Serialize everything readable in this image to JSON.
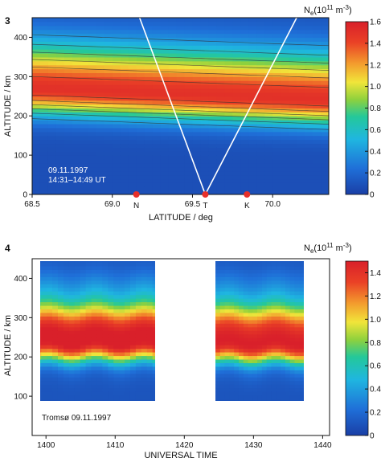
{
  "chart_data": [
    {
      "panel_number": "3",
      "type": "heatmap",
      "title": "",
      "xlabel": "LATITUDE / deg",
      "ylabel": "ALTITUDE / km",
      "xlim": [
        68.5,
        70.35
      ],
      "ylim": [
        0,
        450
      ],
      "x_tick_values": [
        68.5,
        69.0,
        69.5,
        70.0
      ],
      "x_tick_labels": [
        "68.5",
        "69.0",
        "69.5",
        "70.0"
      ],
      "y_tick_values": [
        0,
        100,
        200,
        300,
        400
      ],
      "y_tick_labels": [
        "0",
        "100",
        "200",
        "300",
        "400"
      ],
      "colorbar": {
        "label_base": "N",
        "label_sub": "e",
        "label_units": "(10",
        "label_exp": "11",
        "label_units_tail": " m",
        "label_exp2": "-3",
        "label_close": ")",
        "range": [
          0,
          1.6
        ],
        "tick_values": [
          0,
          0.2,
          0.4,
          0.6,
          0.8,
          1.0,
          1.2,
          1.4,
          1.6
        ],
        "tick_labels": [
          "0",
          "0.2",
          "0.4",
          "0.6",
          "0.8",
          "1.0",
          "1.2",
          "1.4",
          "1.6"
        ]
      },
      "annotation_lines": [
        "09.11.1997",
        "14:31–14:49 UT"
      ],
      "stations": [
        {
          "label": "N",
          "latitude": 69.15,
          "color": "#e8302a"
        },
        {
          "label": "T",
          "latitude": 69.58,
          "color": "#e8302a"
        },
        {
          "label": "K",
          "latitude": 69.84,
          "color": "#e8302a"
        }
      ],
      "beam_lines": [
        {
          "from": [
            69.58,
            0
          ],
          "to": [
            69.17,
            450
          ],
          "color": "#ffffff"
        },
        {
          "from": [
            69.58,
            0
          ],
          "to": [
            70.15,
            450
          ],
          "color": "#ffffff"
        }
      ],
      "profile_model": {
        "peak_altitude_start": 270,
        "peak_altitude_end": 242,
        "peak_value": 1.42,
        "half_width_km": 70
      },
      "contour_levels": [
        0.4,
        0.6,
        0.8,
        1.0,
        1.2,
        1.4
      ]
    },
    {
      "panel_number": "4",
      "type": "heatmap",
      "title": "",
      "xlabel": "UNIVERSAL TIME",
      "ylabel": "ALTITUDE / km",
      "xlim": [
        1398,
        1441
      ],
      "ylim": [
        0,
        450
      ],
      "x_tick_values": [
        1400,
        1410,
        1420,
        1430,
        1440
      ],
      "x_tick_labels": [
        "1400",
        "1410",
        "1420",
        "1430",
        "1440"
      ],
      "y_tick_values": [
        100,
        200,
        300,
        400
      ],
      "y_tick_labels": [
        "100",
        "200",
        "300",
        "400"
      ],
      "colorbar": {
        "label_base": "N",
        "label_sub": "e",
        "label_units": "(10",
        "label_exp": "11",
        "label_units_tail": " m",
        "label_exp2": "-3",
        "label_close": ")",
        "range": [
          0,
          1.5
        ],
        "tick_values": [
          0,
          0.2,
          0.4,
          0.6,
          0.8,
          1.0,
          1.2,
          1.4
        ],
        "tick_labels": [
          "0",
          "0.2",
          "0.4",
          "0.6",
          "0.8",
          "1.0",
          "1.2",
          "1.4"
        ]
      },
      "annotation_lines": [
        "Tromsø 09.11.1997"
      ],
      "data_blocks": [
        {
          "time_start": 1398.5,
          "time_end": 1416.2,
          "alt_min": 85,
          "alt_max": 450,
          "peak_altitude": 245,
          "peak_value": 1.45
        },
        {
          "time_start": 1424.5,
          "time_end": 1439.3,
          "alt_min": 85,
          "alt_max": 450,
          "peak_altitude": 240,
          "peak_value": 1.4
        }
      ]
    }
  ]
}
